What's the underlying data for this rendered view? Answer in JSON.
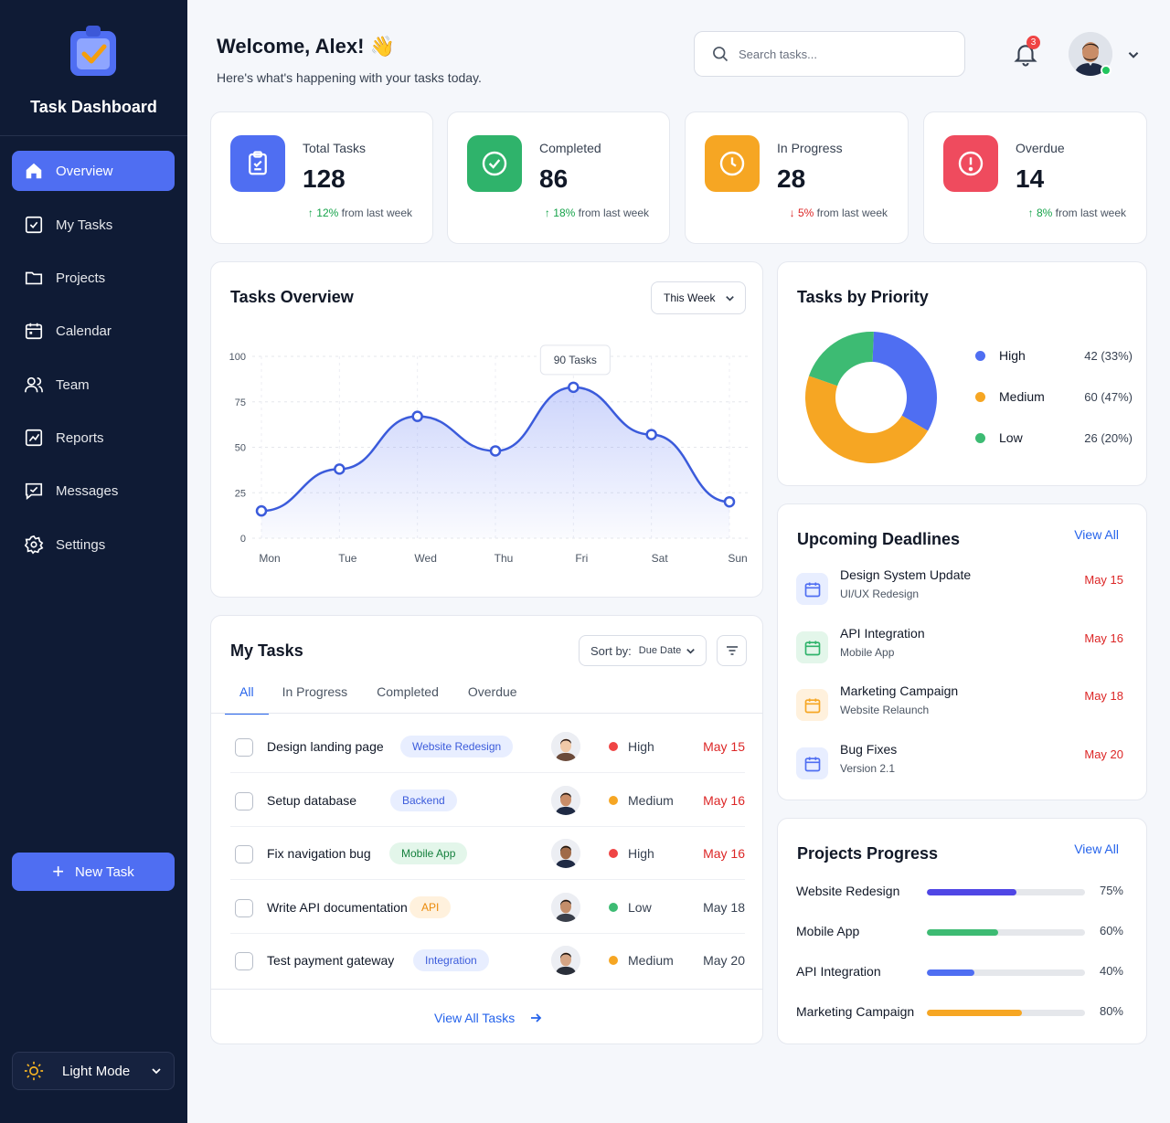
{
  "sidebar": {
    "app_title": "Task Dashboard",
    "logo_icon": "clipboard-check-icon",
    "items": [
      {
        "label": "Overview",
        "icon": "home-icon",
        "active": true
      },
      {
        "label": "My Tasks",
        "icon": "checkbox-icon"
      },
      {
        "label": "Projects",
        "icon": "folder-icon"
      },
      {
        "label": "Calendar",
        "icon": "calendar-icon"
      },
      {
        "label": "Team",
        "icon": "users-icon"
      },
      {
        "label": "Reports",
        "icon": "chart-icon"
      },
      {
        "label": "Messages",
        "icon": "message-icon"
      },
      {
        "label": "Settings",
        "icon": "gear-icon"
      }
    ],
    "new_task_label": "New Task",
    "mode_label": "Light Mode"
  },
  "header": {
    "welcome": "Welcome, Alex! 👋",
    "subtitle": "Here's what's happening with your tasks today.",
    "search_placeholder": "Search tasks...",
    "notification_count": "3"
  },
  "stats": [
    {
      "label": "Total Tasks",
      "value": "128",
      "change": "12%",
      "change_text": " from last week",
      "direction": "up",
      "color": "#4f6ef2"
    },
    {
      "label": "Completed",
      "value": "86",
      "change": "18%",
      "change_text": " from last week",
      "direction": "up",
      "color": "#2fb36b"
    },
    {
      "label": "In Progress",
      "value": "28",
      "change": "5%",
      "change_text": " from last week",
      "direction": "down",
      "color": "#f6a623"
    },
    {
      "label": "Overdue",
      "value": "14",
      "change": "8%",
      "change_text": " from last week",
      "direction": "up",
      "color": "#ef4b5e"
    }
  ],
  "overview": {
    "title": "Tasks Overview",
    "period": "This Week",
    "tooltip": "90 Tasks"
  },
  "chart_data": {
    "type": "area",
    "categories": [
      "Mon",
      "Tue",
      "Wed",
      "Thu",
      "Fri",
      "Sat",
      "Sun"
    ],
    "values": [
      15,
      38,
      67,
      48,
      83,
      57,
      20
    ],
    "yticks": [
      0,
      25,
      50,
      75,
      100
    ],
    "ylim": [
      0,
      100
    ],
    "grid": true,
    "color": "#3b5bdb"
  },
  "priority": {
    "title": "Tasks by Priority",
    "items": [
      {
        "label": "High",
        "value": "42 (33%)",
        "count": 42,
        "color": "#4f6ef2"
      },
      {
        "label": "Medium",
        "value": "60 (47%)",
        "count": 60,
        "color": "#f6a623"
      },
      {
        "label": "Low",
        "value": "26 (20%)",
        "count": 26,
        "color": "#3dbb73"
      }
    ]
  },
  "deadlines": {
    "title": "Upcoming Deadlines",
    "view_all": "View All",
    "items": [
      {
        "title": "Design System Update",
        "sub": "UI/UX Redesign",
        "date": "May 15",
        "color": "#4f6ef2",
        "bg": "#e8eeff"
      },
      {
        "title": "API Integration",
        "sub": "Mobile App",
        "date": "May 16",
        "color": "#2fb36b",
        "bg": "#e3f6ea"
      },
      {
        "title": "Marketing Campaign",
        "sub": "Website Relaunch",
        "date": "May 18",
        "color": "#f6a623",
        "bg": "#fff1dd"
      },
      {
        "title": "Bug Fixes",
        "sub": "Version 2.1",
        "date": "May 20",
        "color": "#4f6ef2",
        "bg": "#e8eeff"
      }
    ]
  },
  "projects": {
    "title": "Projects Progress",
    "view_all": "View All",
    "items": [
      {
        "name": "Website Redesign",
        "pct": "75%",
        "value": 0.75,
        "color": "#4f46e5"
      },
      {
        "name": "Mobile App",
        "pct": "60%",
        "value": 0.6,
        "color": "#3dbb73"
      },
      {
        "name": "API Integration",
        "pct": "40%",
        "value": 0.4,
        "color": "#4f6ef2"
      },
      {
        "name": "Marketing Campaign",
        "pct": "80%",
        "value": 0.8,
        "color": "#f6a623"
      }
    ]
  },
  "tasks": {
    "title": "My Tasks",
    "sort_label": "Sort by:",
    "sort_value": "Due Date",
    "tabs": [
      "All",
      "In Progress",
      "Completed",
      "Overdue"
    ],
    "rows": [
      {
        "name": "Design landing page",
        "tag": "Website Redesign",
        "tag_style": "blue",
        "priority": "High",
        "priority_color": "#ef4444",
        "due": "May 15",
        "due_red": true
      },
      {
        "name": "Setup database",
        "tag": "Backend",
        "tag_style": "blue",
        "priority": "Medium",
        "priority_color": "#f6a623",
        "due": "May 16",
        "due_red": true
      },
      {
        "name": "Fix navigation bug",
        "tag": "Mobile App",
        "tag_style": "green",
        "priority": "High",
        "priority_color": "#ef4444",
        "due": "May 16",
        "due_red": true
      },
      {
        "name": "Write API documentation",
        "tag": "API",
        "tag_style": "orange",
        "priority": "Low",
        "priority_color": "#3dbb73",
        "due": "May 18",
        "due_red": false
      },
      {
        "name": "Test payment gateway",
        "tag": "Integration",
        "tag_style": "blue",
        "priority": "Medium",
        "priority_color": "#f6a623",
        "due": "May 20",
        "due_red": false
      }
    ],
    "view_all": "View All Tasks"
  }
}
